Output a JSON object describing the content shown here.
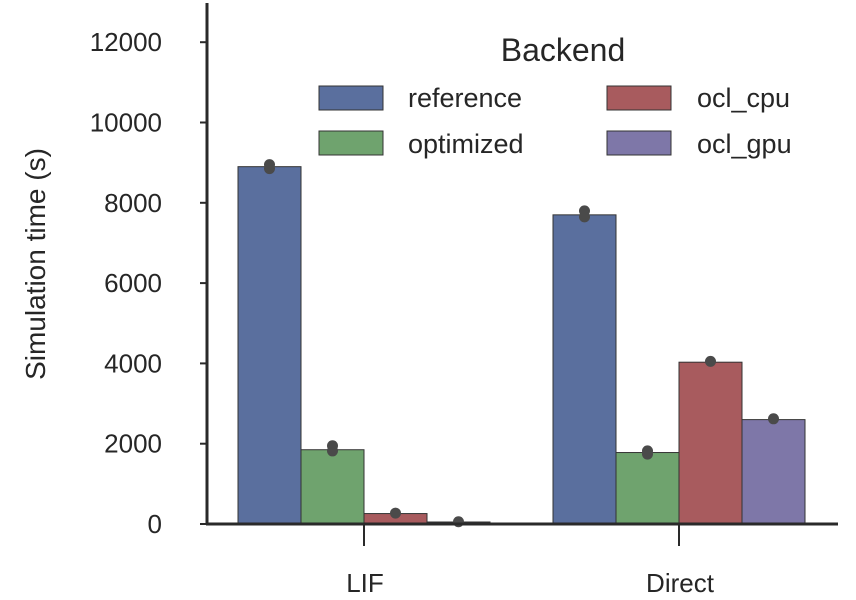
{
  "chart_data": {
    "type": "bar",
    "title": "",
    "xlabel": "",
    "ylabel": "Simulation time (s)",
    "categories": [
      "LIF",
      "Direct"
    ],
    "ylim": [
      0,
      13000
    ],
    "yticks": [
      "0",
      "2000",
      "4000",
      "6000",
      "8000",
      "10000",
      "12000"
    ],
    "grid": false,
    "legend": {
      "title": "Backend",
      "placement": "top-right",
      "columns": 2
    },
    "series": [
      {
        "name": "reference",
        "color": "#5a6f9e",
        "values": [
          8900,
          7700
        ],
        "points": [
          [
            8950,
            8850
          ],
          [
            7800,
            7650
          ]
        ]
      },
      {
        "name": "optimized",
        "color": "#6fa36e",
        "values": [
          1850,
          1780
        ],
        "points": [
          [
            1950,
            1820
          ],
          [
            1820,
            1740
          ]
        ]
      },
      {
        "name": "ocl_cpu",
        "color": "#a85b5e",
        "values": [
          260,
          4030
        ],
        "points": [
          [
            270
          ],
          [
            4050
          ]
        ]
      },
      {
        "name": "ocl_gpu",
        "color": "#7e77a8",
        "values": [
          50,
          2600
        ],
        "points": [
          [
            55
          ],
          [
            2620
          ]
        ]
      }
    ]
  }
}
